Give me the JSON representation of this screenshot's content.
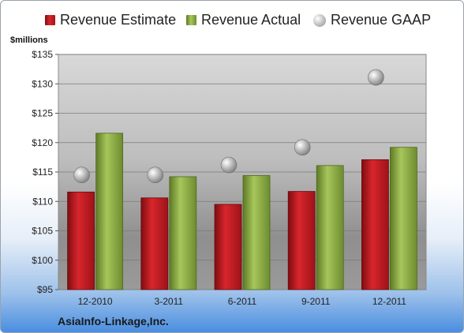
{
  "legend": {
    "estimate_label": "Revenue Estimate",
    "actual_label": "Revenue Actual",
    "gaap_label": "Revenue GAAP"
  },
  "unit_label": "$millions",
  "company": "AsiaInfo-Linkage,Inc.",
  "colors": {
    "estimate": "#c0191f",
    "actual": "#8fae45",
    "gaap": "#a9a9a9"
  },
  "chart_data": {
    "type": "bar",
    "categories": [
      "12-2010",
      "3-2011",
      "6-2011",
      "9-2011",
      "12-2011"
    ],
    "series": [
      {
        "name": "Revenue Estimate",
        "values": [
          111.6,
          110.6,
          109.5,
          111.7,
          117.1
        ]
      },
      {
        "name": "Revenue Actual",
        "values": [
          121.6,
          114.2,
          114.4,
          116.1,
          119.2
        ]
      },
      {
        "name": "Revenue GAAP",
        "values": [
          114.5,
          114.5,
          116.2,
          119.2,
          131.1
        ]
      }
    ],
    "ylabel": "$millions",
    "ylim": [
      95,
      135
    ],
    "yticks": [
      95,
      100,
      105,
      110,
      115,
      120,
      125,
      130,
      135
    ],
    "ytick_labels": [
      "$95",
      "$100",
      "$105",
      "$110",
      "$115",
      "$120",
      "$125",
      "$130",
      "$135"
    ],
    "grid": true,
    "legend_position": "top"
  }
}
